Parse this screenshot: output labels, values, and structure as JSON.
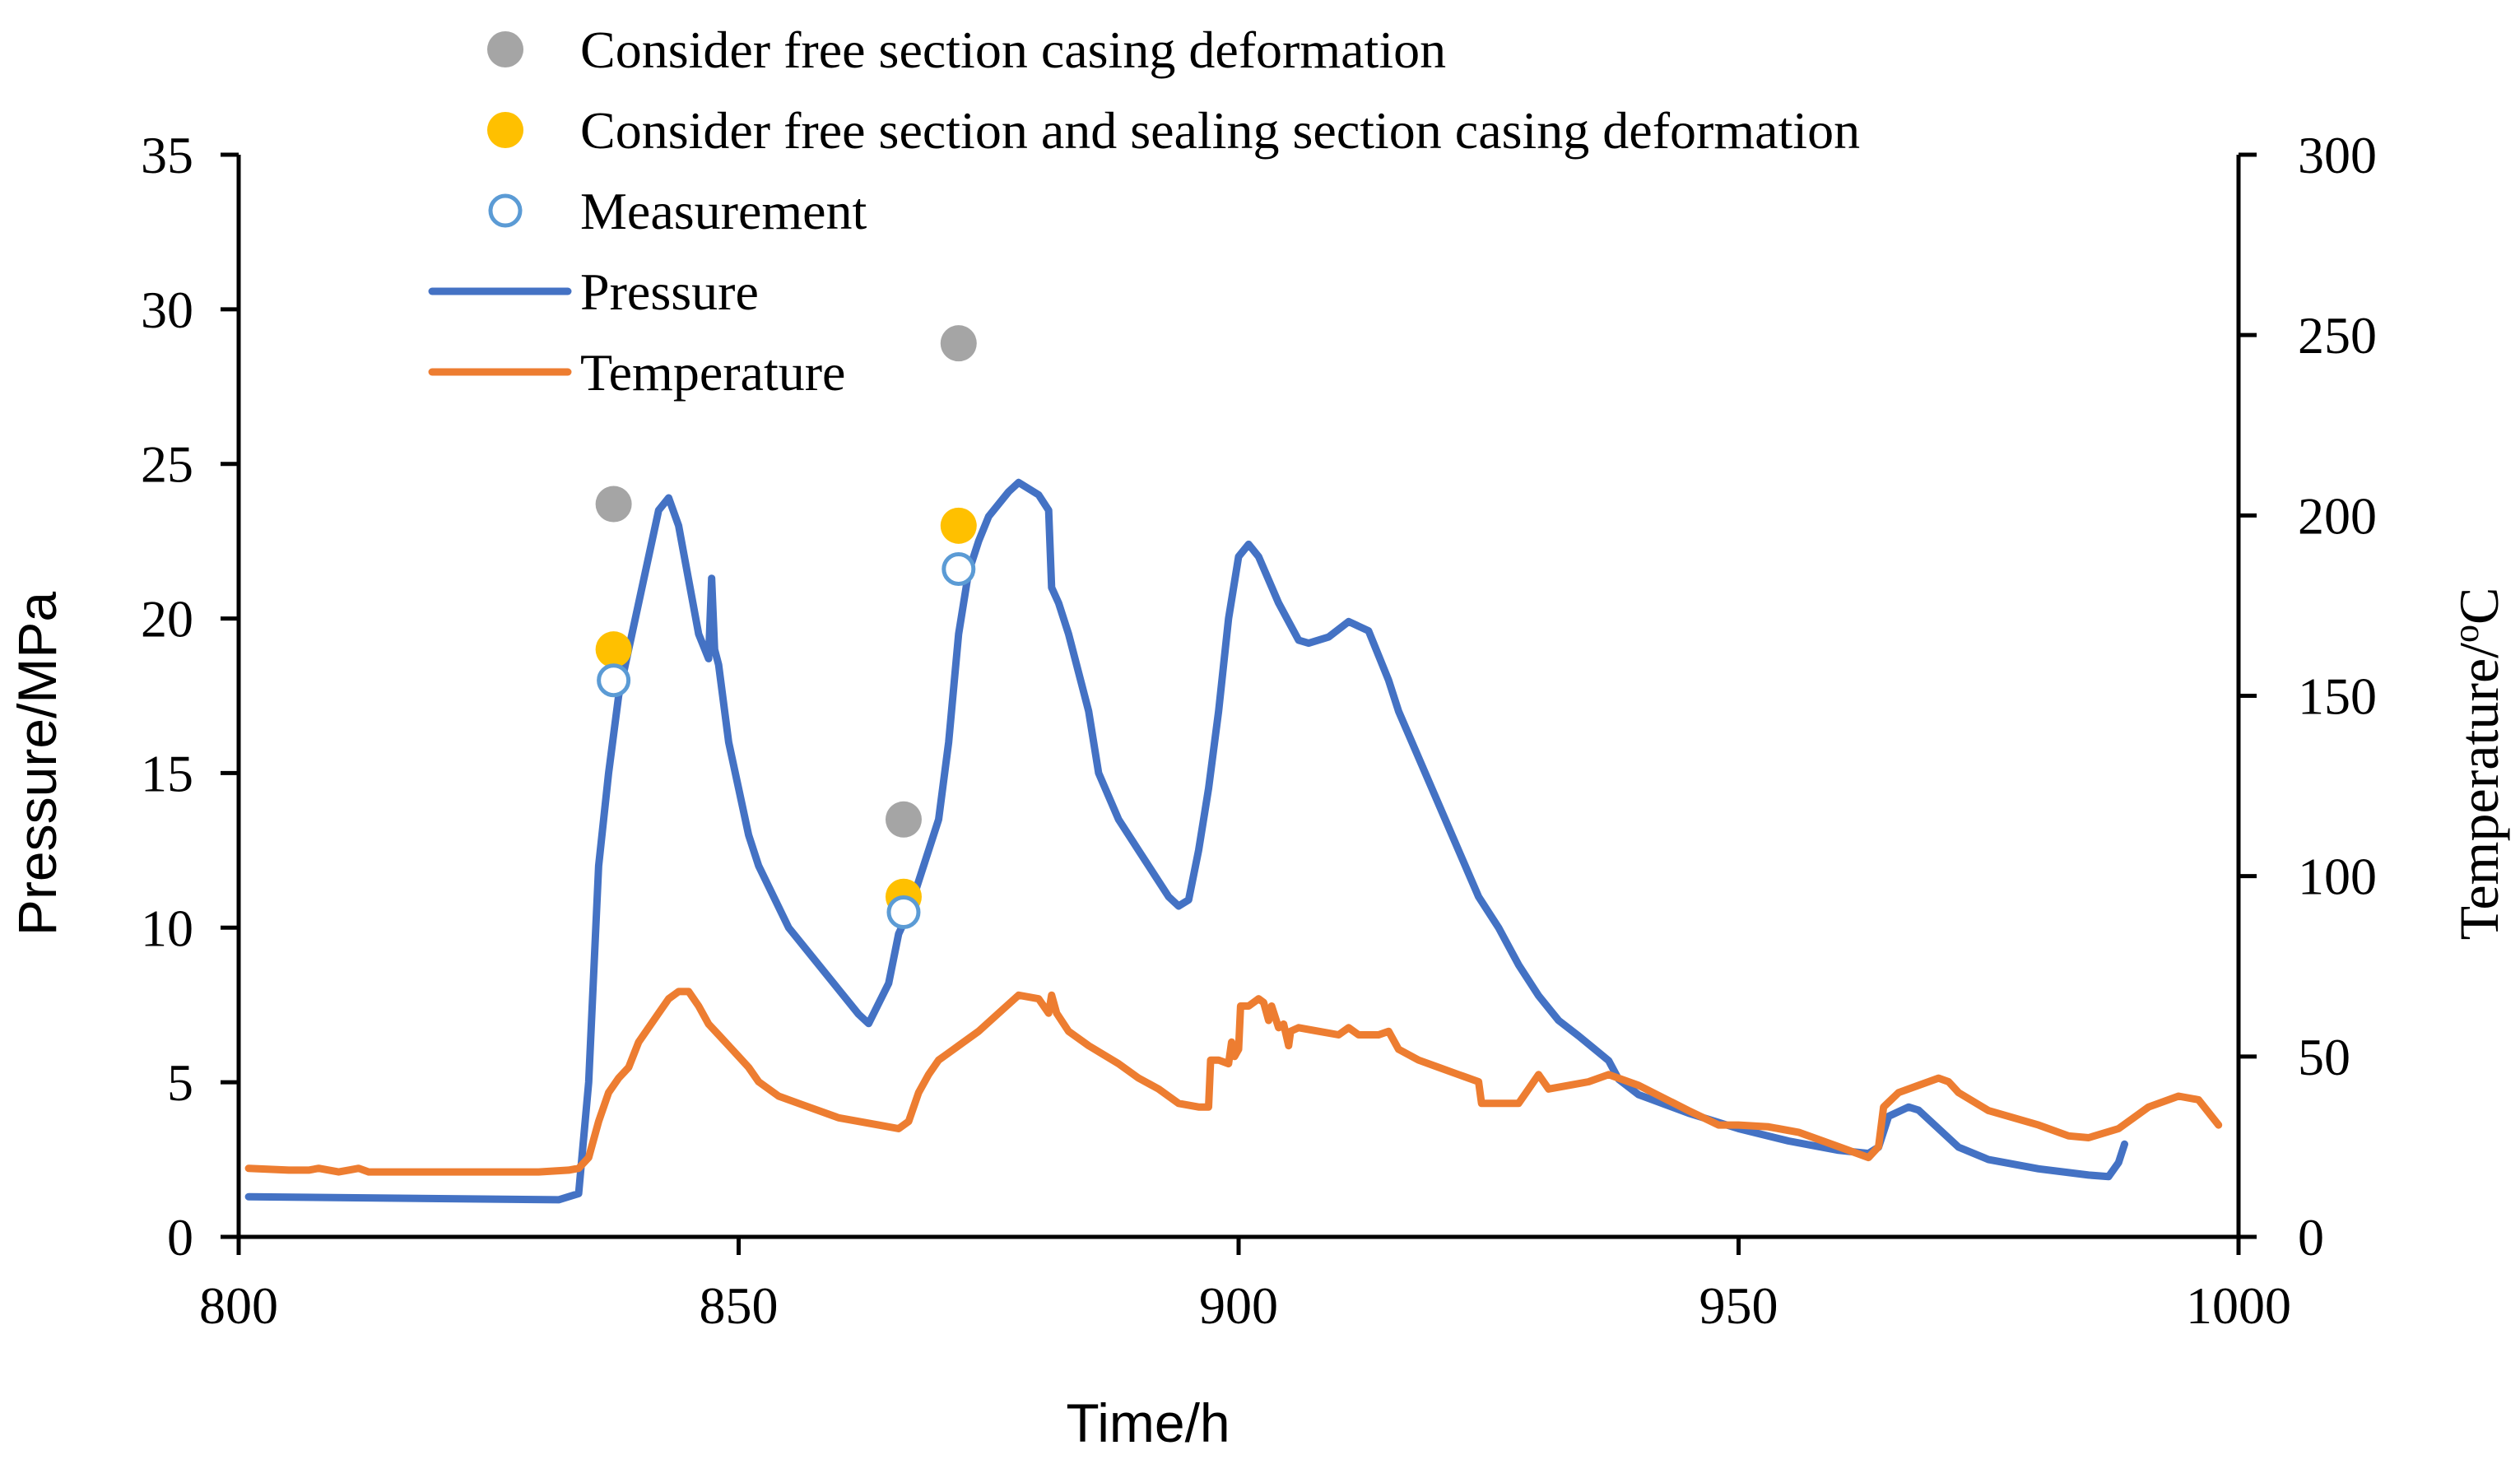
{
  "chart_data": {
    "type": "line",
    "title": "",
    "xlabel": "Time/h",
    "ylabel": "Pressure/MPa",
    "y2label_main": "Temperature/",
    "y2label_sup": "o",
    "y2label_unit": "C",
    "xlim": [
      800,
      1000
    ],
    "ylim": [
      0,
      35
    ],
    "y2lim": [
      0,
      300
    ],
    "x_ticks": [
      800,
      850,
      900,
      950,
      1000
    ],
    "y_ticks": [
      0,
      5,
      10,
      15,
      20,
      25,
      30,
      35
    ],
    "y2_ticks": [
      0,
      50,
      100,
      150,
      200,
      250,
      300
    ],
    "grid": false,
    "legend": {
      "position": "top-left",
      "entries": [
        {
          "label": "Consider free section casing deformation",
          "marker": "filled-circle",
          "color": "#A5A5A5"
        },
        {
          "label": "Consider free section and sealing section casing deformation",
          "marker": "filled-circle",
          "color": "#FFC000"
        },
        {
          "label": "Measurement",
          "marker": "open-circle",
          "color": "#5B9BD5"
        },
        {
          "label": "Pressure",
          "marker": "line",
          "color": "#4472C4"
        },
        {
          "label": "Temperature",
          "marker": "line",
          "color": "#ED7D31"
        }
      ]
    },
    "series": [
      {
        "name": "Pressure",
        "axis": "left",
        "color": "#4472C4",
        "points": [
          [
            801,
            1.3
          ],
          [
            832,
            1.2
          ],
          [
            834,
            1.4
          ],
          [
            835,
            5.0
          ],
          [
            836,
            12.0
          ],
          [
            837,
            15.0
          ],
          [
            838,
            17.5
          ],
          [
            840,
            20.5
          ],
          [
            842,
            23.5
          ],
          [
            843,
            23.9
          ],
          [
            844,
            23.0
          ],
          [
            846,
            19.5
          ],
          [
            847,
            18.7
          ],
          [
            847.3,
            21.3
          ],
          [
            847.6,
            19.0
          ],
          [
            848,
            18.5
          ],
          [
            849,
            16.0
          ],
          [
            850,
            14.5
          ],
          [
            851,
            13.0
          ],
          [
            852,
            12.0
          ],
          [
            855,
            10.0
          ],
          [
            860,
            8.0
          ],
          [
            862,
            7.2
          ],
          [
            863,
            6.9
          ],
          [
            865,
            8.2
          ],
          [
            866,
            9.8
          ],
          [
            867,
            10.5
          ],
          [
            868,
            11.5
          ],
          [
            870,
            13.5
          ],
          [
            871,
            16.0
          ],
          [
            872,
            19.5
          ],
          [
            873,
            21.5
          ],
          [
            874,
            22.5
          ],
          [
            875,
            23.3
          ],
          [
            877,
            24.1
          ],
          [
            878,
            24.4
          ],
          [
            880,
            24.0
          ],
          [
            881,
            23.5
          ],
          [
            881.3,
            21.0
          ],
          [
            882,
            20.5
          ],
          [
            883,
            19.5
          ],
          [
            885,
            17.0
          ],
          [
            886,
            15.0
          ],
          [
            888,
            13.5
          ],
          [
            890,
            12.5
          ],
          [
            893,
            11.0
          ],
          [
            894,
            10.7
          ],
          [
            895,
            10.9
          ],
          [
            896,
            12.5
          ],
          [
            897,
            14.5
          ],
          [
            898,
            17.0
          ],
          [
            899,
            20.0
          ],
          [
            900,
            22.0
          ],
          [
            901,
            22.4
          ],
          [
            902,
            22.0
          ],
          [
            904,
            20.5
          ],
          [
            906,
            19.3
          ],
          [
            907,
            19.2
          ],
          [
            909,
            19.4
          ],
          [
            911,
            19.9
          ],
          [
            913,
            19.6
          ],
          [
            915,
            18.0
          ],
          [
            916,
            17.0
          ],
          [
            918,
            15.5
          ],
          [
            920,
            14.0
          ],
          [
            922,
            12.5
          ],
          [
            924,
            11.0
          ],
          [
            926,
            10.0
          ],
          [
            928,
            8.8
          ],
          [
            930,
            7.8
          ],
          [
            932,
            7.0
          ],
          [
            934,
            6.5
          ],
          [
            937,
            5.7
          ],
          [
            938,
            5.1
          ],
          [
            940,
            4.6
          ],
          [
            945,
            4.0
          ],
          [
            950,
            3.5
          ],
          [
            955,
            3.1
          ],
          [
            960,
            2.8
          ],
          [
            963,
            2.7
          ],
          [
            964,
            2.9
          ],
          [
            965,
            3.9
          ],
          [
            967,
            4.2
          ],
          [
            968,
            4.1
          ],
          [
            970,
            3.5
          ],
          [
            972,
            2.9
          ],
          [
            975,
            2.5
          ],
          [
            980,
            2.2
          ],
          [
            985,
            2.0
          ],
          [
            987,
            1.95
          ],
          [
            988,
            2.4
          ],
          [
            988.6,
            3.0
          ]
        ]
      },
      {
        "name": "Temperature",
        "axis": "right",
        "color": "#ED7D31",
        "points": [
          [
            801,
            19
          ],
          [
            805,
            18.5
          ],
          [
            807,
            18.5
          ],
          [
            808,
            19
          ],
          [
            810,
            18
          ],
          [
            811,
            18.5
          ],
          [
            812,
            19
          ],
          [
            813,
            18
          ],
          [
            815,
            18
          ],
          [
            820,
            18
          ],
          [
            825,
            18
          ],
          [
            830,
            18
          ],
          [
            833,
            18.5
          ],
          [
            834,
            19
          ],
          [
            835,
            22
          ],
          [
            836,
            32
          ],
          [
            837,
            40
          ],
          [
            838,
            44
          ],
          [
            839,
            47
          ],
          [
            840,
            54
          ],
          [
            841,
            58
          ],
          [
            842,
            62
          ],
          [
            843,
            66
          ],
          [
            844,
            68
          ],
          [
            845,
            68
          ],
          [
            846,
            64
          ],
          [
            847,
            59
          ],
          [
            848,
            56
          ],
          [
            849,
            53
          ],
          [
            850,
            50
          ],
          [
            851,
            47
          ],
          [
            852,
            43
          ],
          [
            854,
            39
          ],
          [
            856,
            37
          ],
          [
            860,
            33
          ],
          [
            864,
            31
          ],
          [
            866,
            30
          ],
          [
            867,
            32
          ],
          [
            868,
            40
          ],
          [
            869,
            45
          ],
          [
            870,
            49
          ],
          [
            872,
            53
          ],
          [
            874,
            57
          ],
          [
            876,
            62
          ],
          [
            878,
            67
          ],
          [
            880,
            66
          ],
          [
            881,
            62
          ],
          [
            881.3,
            67
          ],
          [
            881.8,
            62
          ],
          [
            883,
            57
          ],
          [
            885,
            53
          ],
          [
            888,
            48
          ],
          [
            890,
            44
          ],
          [
            892,
            41
          ],
          [
            894,
            37
          ],
          [
            896,
            36
          ],
          [
            897,
            36
          ],
          [
            897.2,
            49
          ],
          [
            898,
            49
          ],
          [
            899,
            48
          ],
          [
            899.3,
            54
          ],
          [
            899.6,
            50
          ],
          [
            900,
            52
          ],
          [
            900.2,
            64
          ],
          [
            901,
            64
          ],
          [
            902,
            66
          ],
          [
            902.5,
            65
          ],
          [
            903,
            60
          ],
          [
            903.3,
            64
          ],
          [
            904,
            58
          ],
          [
            904.5,
            59
          ],
          [
            905,
            53
          ],
          [
            905.2,
            57
          ],
          [
            906,
            58
          ],
          [
            908,
            57
          ],
          [
            910,
            56
          ],
          [
            911,
            58
          ],
          [
            912,
            56
          ],
          [
            913,
            56
          ],
          [
            914,
            56
          ],
          [
            915,
            57
          ],
          [
            916,
            52
          ],
          [
            918,
            49
          ],
          [
            920,
            47
          ],
          [
            922,
            45
          ],
          [
            924,
            43
          ],
          [
            924.3,
            37
          ],
          [
            926,
            37
          ],
          [
            928,
            37
          ],
          [
            929,
            41
          ],
          [
            930,
            45
          ],
          [
            931,
            41
          ],
          [
            933,
            42
          ],
          [
            935,
            43
          ],
          [
            937,
            45
          ],
          [
            940,
            42
          ],
          [
            945,
            35
          ],
          [
            948,
            31
          ],
          [
            950,
            31
          ],
          [
            953,
            30.5
          ],
          [
            956,
            29
          ],
          [
            960,
            25
          ],
          [
            963,
            22
          ],
          [
            964,
            25
          ],
          [
            964.5,
            36
          ],
          [
            966,
            40
          ],
          [
            968,
            42
          ],
          [
            970,
            44
          ],
          [
            971,
            43
          ],
          [
            972,
            40
          ],
          [
            975,
            35
          ],
          [
            980,
            31
          ],
          [
            983,
            28
          ],
          [
            985,
            27.5
          ],
          [
            988,
            30
          ],
          [
            991,
            36
          ],
          [
            994,
            39
          ],
          [
            996,
            38
          ],
          [
            998,
            31
          ]
        ]
      }
    ],
    "scatter_series": [
      {
        "name": "Consider free section casing deformation",
        "marker": "filled-circle",
        "color": "#A5A5A5",
        "points": [
          [
            837.5,
            23.7
          ],
          [
            866.5,
            13.5
          ],
          [
            872,
            28.9
          ]
        ]
      },
      {
        "name": "Consider free section and sealing section casing deformation",
        "marker": "filled-circle",
        "color": "#FFC000",
        "points": [
          [
            837.5,
            19.0
          ],
          [
            866.5,
            11.0
          ],
          [
            872,
            23.0
          ]
        ]
      },
      {
        "name": "Measurement",
        "marker": "open-circle",
        "color": "#5B9BD5",
        "points": [
          [
            837.5,
            18.0
          ],
          [
            866.5,
            10.5
          ],
          [
            872,
            21.6
          ]
        ]
      }
    ]
  }
}
